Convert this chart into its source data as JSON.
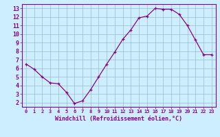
{
  "x": [
    0,
    1,
    2,
    3,
    4,
    5,
    6,
    7,
    8,
    9,
    10,
    11,
    12,
    13,
    14,
    15,
    16,
    17,
    18,
    19,
    20,
    21,
    22,
    23
  ],
  "y": [
    6.5,
    5.9,
    5.0,
    4.3,
    4.2,
    3.2,
    1.9,
    2.2,
    3.5,
    5.0,
    6.5,
    7.9,
    9.4,
    10.5,
    11.9,
    12.1,
    13.0,
    12.9,
    12.9,
    12.3,
    11.0,
    9.3,
    7.6,
    7.6
  ],
  "line_color": "#880088",
  "marker": "+",
  "bg_color": "#cceeff",
  "grid_color": "#99bbcc",
  "xlabel": "Windchill (Refroidissement éolien,°C)",
  "xlabel_color": "#880088",
  "tick_color": "#880088",
  "ylim": [
    1.5,
    13.5
  ],
  "xlim": [
    -0.5,
    23.5
  ],
  "yticks": [
    2,
    3,
    4,
    5,
    6,
    7,
    8,
    9,
    10,
    11,
    12,
    13
  ],
  "xticks": [
    0,
    1,
    2,
    3,
    4,
    5,
    6,
    7,
    8,
    9,
    10,
    11,
    12,
    13,
    14,
    15,
    16,
    17,
    18,
    19,
    20,
    21,
    22,
    23
  ],
  "xtick_labels": [
    "0",
    "1",
    "2",
    "3",
    "4",
    "5",
    "6",
    "7",
    "8",
    "9",
    "10",
    "11",
    "12",
    "13",
    "14",
    "15",
    "16",
    "17",
    "18",
    "19",
    "20",
    "21",
    "22",
    "23"
  ]
}
